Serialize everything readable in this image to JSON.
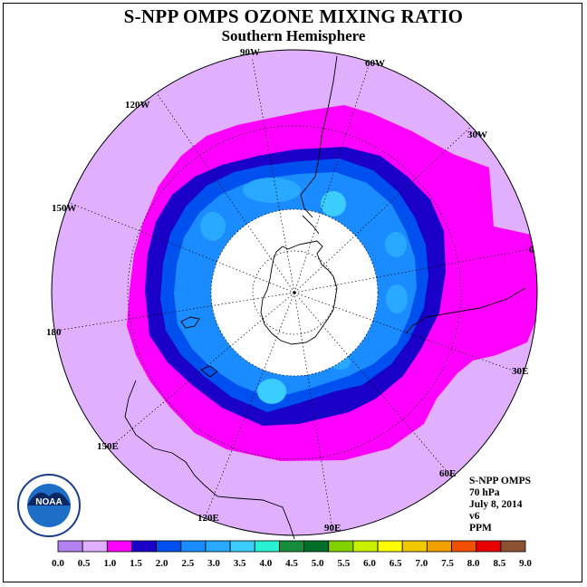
{
  "title": "S-NPP OMPS OZONE MIXING RATIO",
  "subtitle": "Southern Hemisphere",
  "longitude_labels": [
    {
      "id": "90W",
      "text": "90W"
    },
    {
      "id": "60W",
      "text": "60W"
    },
    {
      "id": "30W",
      "text": "30W"
    },
    {
      "id": "0",
      "text": "0"
    },
    {
      "id": "30E",
      "text": "30E"
    },
    {
      "id": "60E",
      "text": "60E"
    },
    {
      "id": "90E",
      "text": "90E"
    },
    {
      "id": "120E",
      "text": "120E"
    },
    {
      "id": "150E",
      "text": "150E"
    },
    {
      "id": "180",
      "text": "180"
    },
    {
      "id": "150W",
      "text": "150W"
    },
    {
      "id": "120W",
      "text": "120W"
    }
  ],
  "info": {
    "instrument": "S-NPP OMPS",
    "level": "70 hPa",
    "date": "July 8, 2014",
    "version": "v6",
    "units": "PPM"
  },
  "logo": {
    "text": "NOAA"
  },
  "colorbar": {
    "ticks": [
      "0.0",
      "0.5",
      "1.0",
      "1.5",
      "2.0",
      "2.5",
      "3.0",
      "3.5",
      "4.0",
      "4.5",
      "5.0",
      "5.5",
      "6.0",
      "6.5",
      "7.0",
      "7.5",
      "8.0",
      "8.5",
      "9.0"
    ],
    "colors": [
      "#b482f0",
      "#e0b0ff",
      "#ff00ff",
      "#1a00c8",
      "#0050f0",
      "#1a8cff",
      "#28a8ff",
      "#3ccdff",
      "#28f0d2",
      "#148c3c",
      "#006e28",
      "#82d200",
      "#c8f000",
      "#ffff00",
      "#f0c800",
      "#f0a000",
      "#f05000",
      "#e60000",
      "#8c5032"
    ]
  },
  "map_colors": {
    "bg": "#e0b0ff",
    "magenta": "#ff00ff",
    "dark_blue": "#1a00c8",
    "blue": "#0050f0",
    "mid_blue": "#1a8cff",
    "light_blue": "#28a8ff",
    "cyan": "#3ccdff"
  }
}
